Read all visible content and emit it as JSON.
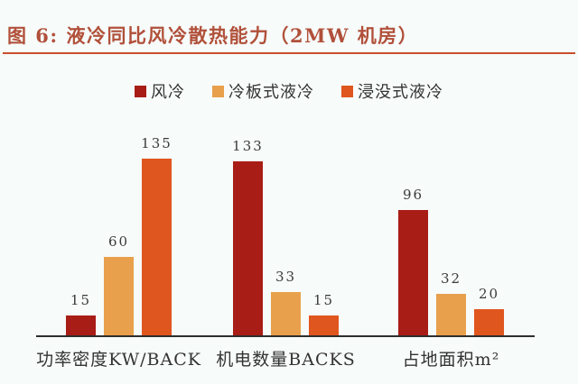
{
  "figure": {
    "title": "图 6:  液冷同比风冷散热能力（2MW 机房）"
  },
  "chart_data": {
    "type": "bar",
    "title": "液冷同比风冷散热能力（2MW 机房）",
    "categories": [
      "功率密度KW/BACK",
      "机电数量BACKS",
      "占地面积m²"
    ],
    "series": [
      {
        "name": "风冷",
        "color": "#a81d16",
        "values": [
          15,
          133,
          96
        ]
      },
      {
        "name": "冷板式液冷",
        "color": "#e8a04c",
        "values": [
          60,
          33,
          32
        ]
      },
      {
        "name": "浸没式液冷",
        "color": "#e0561f",
        "values": [
          135,
          15,
          20
        ]
      }
    ],
    "xlabel": "",
    "ylabel": "",
    "ylim": [
      0,
      140
    ],
    "grid": false,
    "legend_position": "top",
    "value_labels": true
  },
  "colors": {
    "title_text": "#b1503a",
    "title_underline": "#c94f2c",
    "background": "#f7fbfa",
    "axis_line": "#2e2e2e",
    "label_text": "#3a3a3a",
    "category_text": "#333333"
  }
}
